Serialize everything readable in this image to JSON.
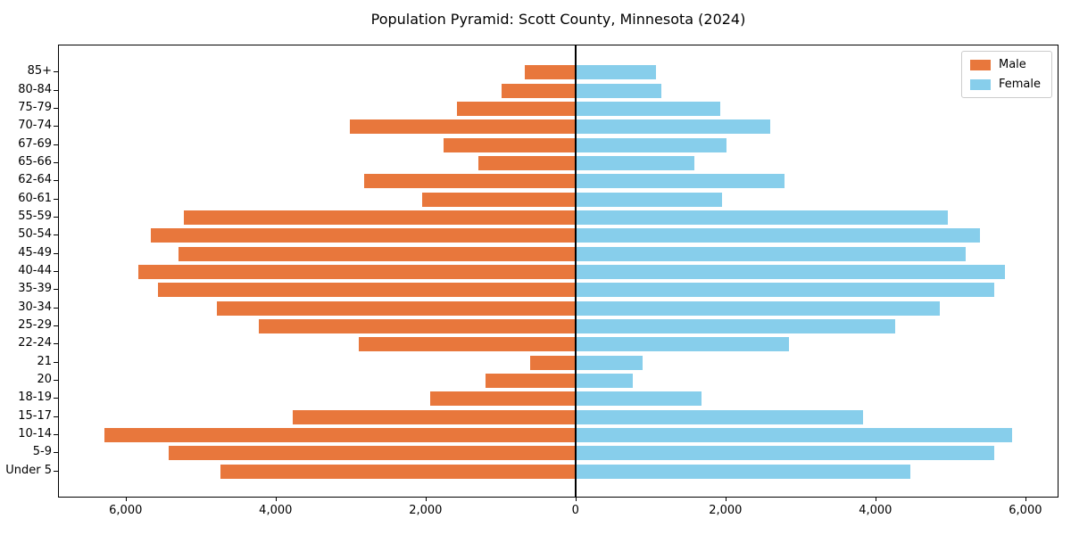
{
  "title": "Population Pyramid: Scott County, Minnesota (2024)",
  "legend": {
    "male": "Male",
    "female": "Female"
  },
  "colors": {
    "male": "#e8773c",
    "female": "#87ceeb",
    "axis": "#000000",
    "legend_border": "#cccccc"
  },
  "chart_data": {
    "type": "bar",
    "orientation": "horizontal-diverging-pyramid",
    "title": "Population Pyramid: Scott County, Minnesota (2024)",
    "xlabel": "",
    "ylabel": "",
    "grid": false,
    "legend_position": "upper right",
    "categories": [
      "85+",
      "80-84",
      "75-79",
      "70-74",
      "67-69",
      "65-66",
      "62-64",
      "60-61",
      "55-59",
      "50-54",
      "45-49",
      "40-44",
      "35-39",
      "30-34",
      "25-29",
      "22-24",
      "21",
      "20",
      "18-19",
      "15-17",
      "10-14",
      "5-9",
      "Under 5"
    ],
    "series": [
      {
        "name": "Male",
        "side": "left",
        "color": "#e8773c",
        "values": [
          680,
          990,
          1580,
          3010,
          1760,
          1300,
          2820,
          2050,
          5220,
          5660,
          5290,
          5830,
          5570,
          4780,
          4220,
          2890,
          610,
          1200,
          1940,
          3770,
          6280,
          5430,
          4730
        ]
      },
      {
        "name": "Female",
        "side": "right",
        "color": "#87ceeb",
        "values": [
          1070,
          1150,
          1930,
          2600,
          2010,
          1580,
          2790,
          1960,
          4970,
          5390,
          5200,
          5730,
          5580,
          4860,
          4260,
          2850,
          900,
          760,
          1680,
          3830,
          5820,
          5580,
          4470
        ]
      }
    ],
    "x_ticks": [
      -6000,
      -4000,
      -2000,
      0,
      2000,
      4000,
      6000
    ],
    "x_tick_labels": [
      "6,000",
      "4,000",
      "2,000",
      "0",
      "2,000",
      "4,000",
      "6,000"
    ],
    "xlim": [
      -6890,
      6430
    ]
  }
}
